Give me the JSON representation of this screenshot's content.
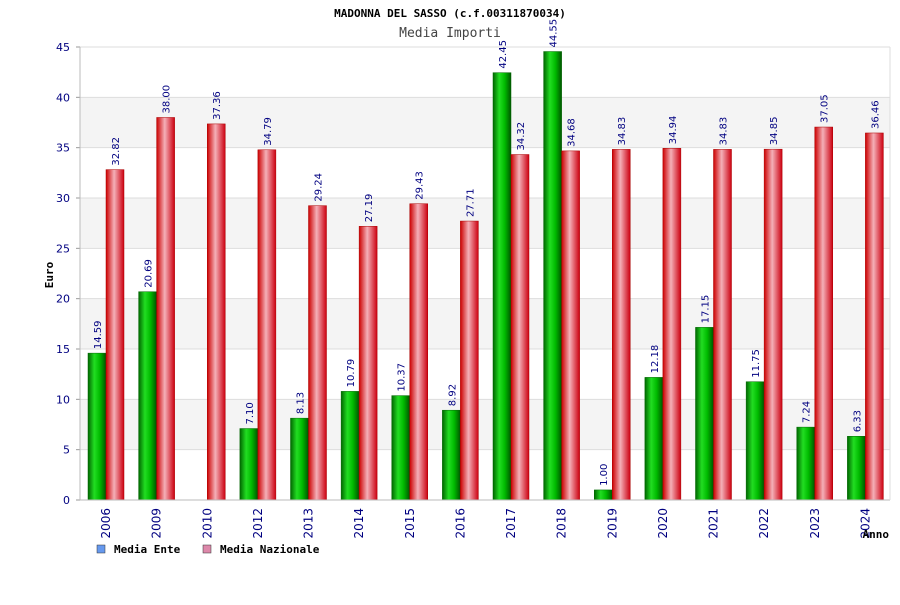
{
  "chart_data": {
    "type": "bar",
    "title": "MADONNA DEL SASSO (c.f.00311870034)",
    "subtitle": "Media Importi",
    "xlabel": "Anno",
    "ylabel": "Euro",
    "ylim": [
      0,
      45
    ],
    "yticks": [
      0,
      5,
      10,
      15,
      20,
      25,
      30,
      35,
      40,
      45
    ],
    "categories": [
      "2006",
      "2009",
      "2010",
      "2012",
      "2013",
      "2014",
      "2015",
      "2016",
      "2017",
      "2018",
      "2019",
      "2020",
      "2021",
      "2022",
      "2023",
      "2024"
    ],
    "series": [
      {
        "name": "Media Ente",
        "color": "#00bb00",
        "legend_color": "#6699ee",
        "values": [
          14.59,
          20.69,
          null,
          7.1,
          8.13,
          10.79,
          10.37,
          8.92,
          42.45,
          44.55,
          1.0,
          12.18,
          17.15,
          11.75,
          7.24,
          6.33
        ],
        "labels": [
          "14.59",
          "20.69",
          "",
          "7.10",
          "8.13",
          "10.79",
          "10.37",
          "8.92",
          "42.45",
          "44.55",
          "1.00",
          "12.18",
          "17.15",
          "11.75",
          "7.24",
          "6.33"
        ]
      },
      {
        "name": "Media Nazionale",
        "color": "#ee1122",
        "legend_color": "#dd88aa",
        "values": [
          32.82,
          38.0,
          37.36,
          34.79,
          29.24,
          27.19,
          29.43,
          27.71,
          34.32,
          34.68,
          34.83,
          34.94,
          34.83,
          34.85,
          37.05,
          36.46
        ],
        "labels": [
          "32.82",
          "38.00",
          "37.36",
          "34.79",
          "29.24",
          "27.19",
          "29.43",
          "27.71",
          "34.32",
          "34.68",
          "34.83",
          "34.94",
          "34.83",
          "34.85",
          "37.05",
          "36.46"
        ]
      }
    ],
    "grid": true,
    "legend": "bottom-left"
  }
}
